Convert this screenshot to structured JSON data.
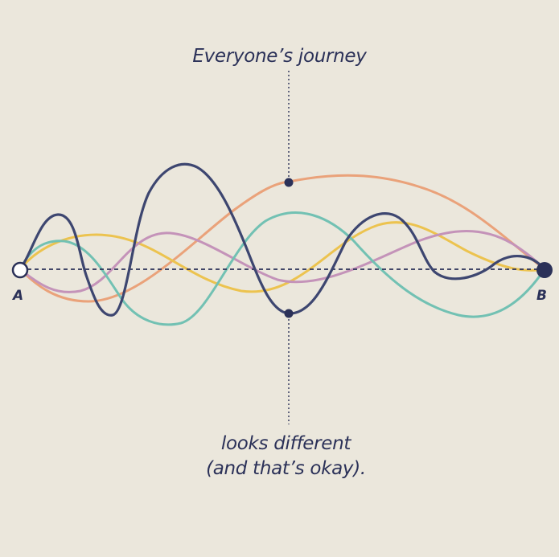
{
  "caption_top": "Everyone’s journey",
  "caption_bottom_line1": "looks different",
  "caption_bottom_line2": "(and that’s okay).",
  "start_label": "A",
  "end_label": "B",
  "colors": {
    "background": "#ebe7dc",
    "ink": "#2b3158",
    "navy_path": "#3d4670",
    "orange_path": "#eaa27a",
    "yellow_path": "#ecc34f",
    "teal_path": "#72c1b3",
    "purple_path": "#c493b9"
  },
  "paths": [
    {
      "id": "orange",
      "color": "orange_path"
    },
    {
      "id": "yellow",
      "color": "yellow_path"
    },
    {
      "id": "purple",
      "color": "purple_path"
    },
    {
      "id": "teal",
      "color": "teal_path"
    },
    {
      "id": "navy",
      "color": "navy_path"
    }
  ]
}
